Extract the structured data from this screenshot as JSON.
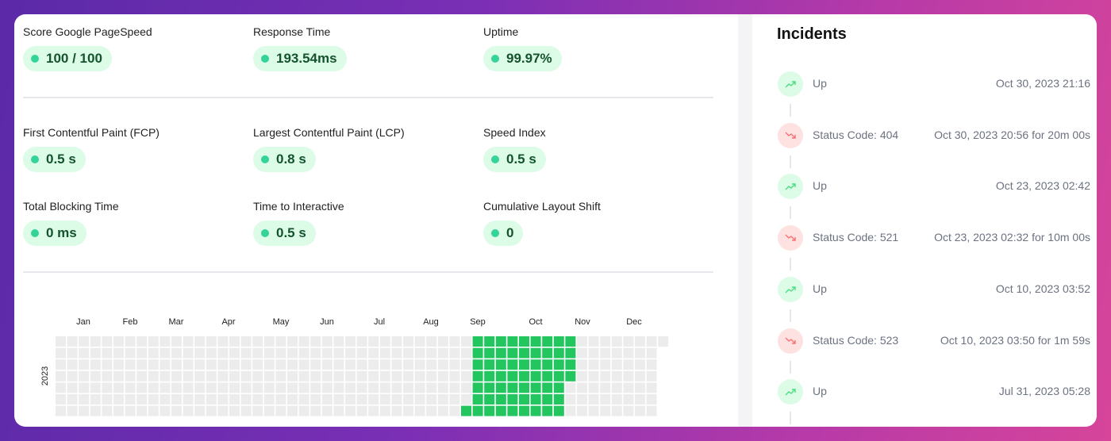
{
  "metrics": [
    {
      "label": "Score Google PageSpeed",
      "value": "100 / 100"
    },
    {
      "label": "Response Time",
      "value": "193.54ms"
    },
    {
      "label": "Uptime",
      "value": "99.97%"
    },
    {
      "label": "First Contentful Paint (FCP)",
      "value": "0.5 s"
    },
    {
      "label": "Largest Contentful Paint (LCP)",
      "value": "0.8 s"
    },
    {
      "label": "Speed Index",
      "value": "0.5 s"
    },
    {
      "label": "Total Blocking Time",
      "value": "0 ms"
    },
    {
      "label": "Time to Interactive",
      "value": "0.5 s"
    },
    {
      "label": "Cumulative Layout Shift",
      "value": "0"
    }
  ],
  "calendar": {
    "year": "2023",
    "months": [
      "Jan",
      "Feb",
      "Mar",
      "Apr",
      "May",
      "Jun",
      "Jul",
      "Aug",
      "Sep",
      "Oct",
      "Nov",
      "Dec"
    ]
  },
  "incidents": {
    "title": "Incidents",
    "items": [
      {
        "status": "Up",
        "time": "Oct 30, 2023 21:16",
        "trend": "up"
      },
      {
        "status": "Status Code: 404",
        "time": "Oct 30, 2023 20:56 for 20m 00s",
        "trend": "down"
      },
      {
        "status": "Up",
        "time": "Oct 23, 2023 02:42",
        "trend": "up"
      },
      {
        "status": "Status Code: 521",
        "time": "Oct 23, 2023 02:32 for 10m 00s",
        "trend": "down"
      },
      {
        "status": "Up",
        "time": "Oct 10, 2023 03:52",
        "trend": "up"
      },
      {
        "status": "Status Code: 523",
        "time": "Oct 10, 2023 03:50 for 1m 59s",
        "trend": "down"
      },
      {
        "status": "Up",
        "time": "Jul 31, 2023 05:28",
        "trend": "up"
      }
    ]
  }
}
